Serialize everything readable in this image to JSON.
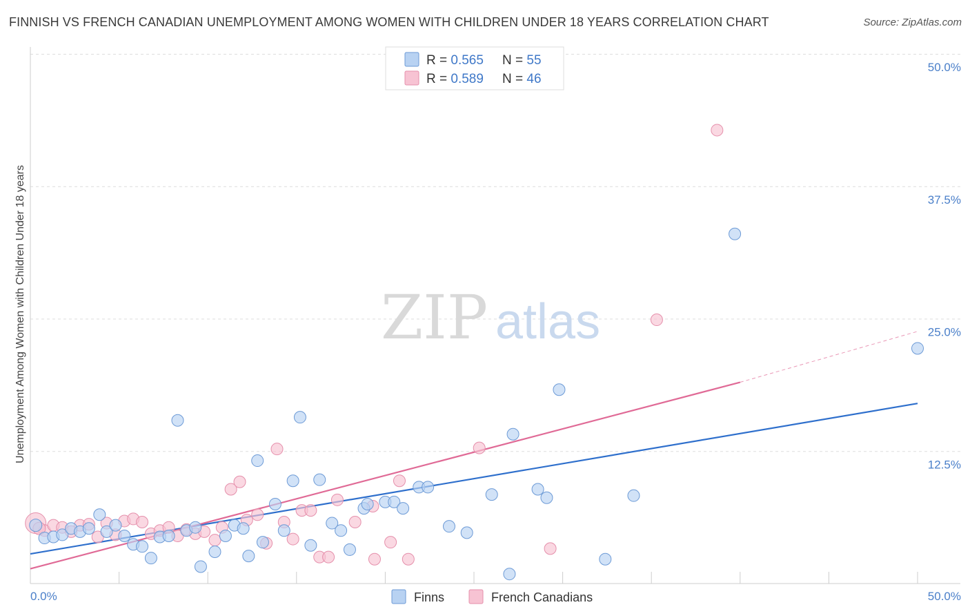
{
  "title": "FINNISH VS FRENCH CANADIAN UNEMPLOYMENT AMONG WOMEN WITH CHILDREN UNDER 18 YEARS CORRELATION CHART",
  "source": "Source: ZipAtlas.com",
  "watermark": {
    "zip": "ZIP",
    "atlas": "atlas"
  },
  "legend": {
    "rows": [
      {
        "r_label": "R = ",
        "r_value": "0.565",
        "n_label": "N = ",
        "n_value": "55"
      },
      {
        "r_label": "R = ",
        "r_value": "0.589",
        "n_label": "N = ",
        "n_value": "46"
      }
    ]
  },
  "bottom_legend": [
    "Finns",
    "French Canadians"
  ],
  "colors": {
    "finns_fill": "#b8d2f2",
    "finns_stroke": "#6c9ad6",
    "finns_line": "#2e6fcc",
    "french_fill": "#f7c3d3",
    "french_stroke": "#e58fab",
    "french_line": "#e06a96",
    "grid": "#dddddd",
    "axis": "#cccccc"
  },
  "chart_data": {
    "type": "scatter",
    "xlabel": "",
    "ylabel": "Unemployment Among Women with Children Under 18 years",
    "xlim": [
      0,
      50
    ],
    "ylim": [
      0,
      50
    ],
    "x_tick_labels": [
      "0.0%",
      "50.0%"
    ],
    "y_ticks": [
      12.5,
      25.0,
      37.5,
      50.0
    ],
    "y_tick_labels": [
      "12.5%",
      "25.0%",
      "37.5%",
      "50.0%"
    ],
    "grid": true,
    "series": [
      {
        "name": "Finns",
        "r": 0.565,
        "n": 55,
        "trend": {
          "x": [
            0,
            50
          ],
          "y": [
            2.8,
            17.0
          ]
        },
        "points": [
          [
            0.3,
            5.5
          ],
          [
            0.8,
            4.3
          ],
          [
            1.3,
            4.4
          ],
          [
            1.8,
            4.6
          ],
          [
            2.3,
            5.2
          ],
          [
            2.8,
            4.9
          ],
          [
            3.3,
            5.2
          ],
          [
            3.9,
            6.5
          ],
          [
            4.3,
            4.9
          ],
          [
            4.8,
            5.5
          ],
          [
            5.3,
            4.5
          ],
          [
            5.8,
            3.7
          ],
          [
            6.3,
            3.5
          ],
          [
            6.8,
            2.4
          ],
          [
            7.3,
            4.4
          ],
          [
            7.8,
            4.5
          ],
          [
            8.3,
            15.4
          ],
          [
            8.8,
            5.0
          ],
          [
            9.3,
            5.3
          ],
          [
            9.6,
            1.6
          ],
          [
            10.4,
            3.0
          ],
          [
            11.0,
            4.5
          ],
          [
            11.5,
            5.5
          ],
          [
            12.0,
            5.2
          ],
          [
            12.3,
            2.6
          ],
          [
            12.8,
            11.6
          ],
          [
            13.1,
            3.9
          ],
          [
            13.8,
            7.5
          ],
          [
            14.3,
            5.0
          ],
          [
            14.8,
            9.7
          ],
          [
            15.2,
            15.7
          ],
          [
            15.8,
            3.6
          ],
          [
            16.3,
            9.8
          ],
          [
            17.0,
            5.7
          ],
          [
            17.5,
            5.0
          ],
          [
            18.0,
            3.2
          ],
          [
            18.8,
            7.1
          ],
          [
            19.0,
            7.5
          ],
          [
            20.0,
            7.7
          ],
          [
            20.5,
            7.7
          ],
          [
            21.0,
            7.1
          ],
          [
            21.9,
            9.1
          ],
          [
            22.4,
            9.1
          ],
          [
            23.6,
            5.4
          ],
          [
            24.6,
            4.8
          ],
          [
            26.0,
            8.4
          ],
          [
            27.0,
            0.9
          ],
          [
            27.2,
            14.1
          ],
          [
            28.6,
            8.9
          ],
          [
            29.1,
            8.1
          ],
          [
            29.8,
            18.3
          ],
          [
            32.4,
            2.3
          ],
          [
            34.0,
            8.3
          ],
          [
            39.7,
            33.0
          ],
          [
            50.0,
            22.2
          ]
        ]
      },
      {
        "name": "French Canadians",
        "r": 0.589,
        "n": 46,
        "trend": {
          "x": [
            0,
            40
          ],
          "y": [
            1.4,
            19.0
          ]
        },
        "trend_extension": {
          "x": [
            40,
            50
          ],
          "y": [
            19.0,
            23.8
          ]
        },
        "points": [
          [
            0.3,
            5.7
          ],
          [
            0.8,
            5.0
          ],
          [
            1.3,
            5.5
          ],
          [
            1.8,
            5.3
          ],
          [
            2.3,
            4.9
          ],
          [
            2.8,
            5.5
          ],
          [
            3.3,
            5.6
          ],
          [
            3.8,
            4.4
          ],
          [
            4.3,
            5.7
          ],
          [
            4.8,
            4.6
          ],
          [
            5.3,
            5.9
          ],
          [
            5.8,
            6.1
          ],
          [
            6.3,
            5.8
          ],
          [
            6.8,
            4.7
          ],
          [
            7.3,
            5.0
          ],
          [
            7.8,
            5.3
          ],
          [
            8.3,
            4.5
          ],
          [
            8.8,
            5.1
          ],
          [
            9.3,
            4.7
          ],
          [
            9.8,
            4.9
          ],
          [
            10.4,
            4.1
          ],
          [
            10.8,
            5.3
          ],
          [
            11.3,
            8.9
          ],
          [
            11.8,
            9.6
          ],
          [
            12.2,
            6.0
          ],
          [
            12.8,
            6.5
          ],
          [
            13.3,
            3.8
          ],
          [
            13.9,
            12.7
          ],
          [
            14.3,
            5.8
          ],
          [
            14.8,
            4.2
          ],
          [
            15.3,
            6.9
          ],
          [
            15.8,
            6.9
          ],
          [
            16.3,
            2.5
          ],
          [
            16.8,
            2.5
          ],
          [
            17.3,
            7.9
          ],
          [
            18.3,
            5.8
          ],
          [
            19.3,
            7.3
          ],
          [
            19.4,
            2.3
          ],
          [
            20.3,
            3.9
          ],
          [
            20.8,
            9.7
          ],
          [
            21.3,
            2.3
          ],
          [
            25.3,
            12.8
          ],
          [
            29.3,
            3.3
          ],
          [
            35.3,
            24.9
          ],
          [
            38.7,
            42.8
          ],
          [
            0.5,
            5.2
          ]
        ]
      }
    ]
  }
}
